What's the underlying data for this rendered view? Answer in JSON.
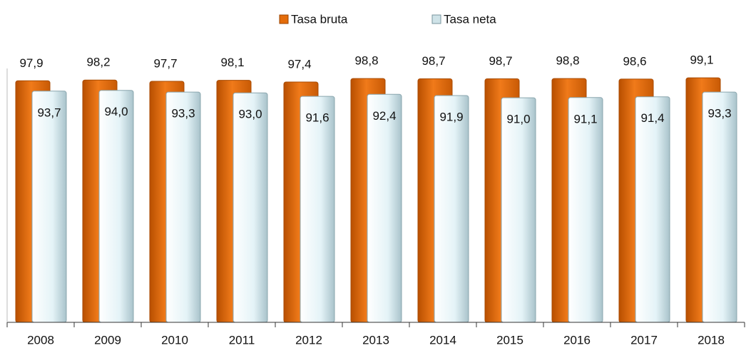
{
  "chart_data": {
    "type": "bar",
    "categories": [
      "2008",
      "2009",
      "2010",
      "2011",
      "2012",
      "2013",
      "2014",
      "2015",
      "2016",
      "2017",
      "2018"
    ],
    "series": [
      {
        "name": "Tasa bruta",
        "color": "#e46c0a",
        "values": [
          97.9,
          98.2,
          97.7,
          98.1,
          97.4,
          98.8,
          98.7,
          98.7,
          98.8,
          98.6,
          99.1
        ],
        "value_labels": [
          "97,9",
          "98,2",
          "97,7",
          "98,1",
          "97,4",
          "98,8",
          "98,7",
          "98,7",
          "98,8",
          "98,6",
          "99,1"
        ]
      },
      {
        "name": "Tasa neta",
        "color": "#dff0f4",
        "values": [
          93.7,
          94.0,
          93.3,
          93.0,
          91.6,
          92.4,
          91.9,
          91.0,
          91.1,
          91.4,
          93.3
        ],
        "value_labels": [
          "93,7",
          "94,0",
          "93,3",
          "93,0",
          "91,6",
          "92,4",
          "91,9",
          "91,0",
          "91,1",
          "91,4",
          "93,3"
        ]
      }
    ],
    "ylim": [
      0,
      100
    ],
    "legend": "top"
  }
}
